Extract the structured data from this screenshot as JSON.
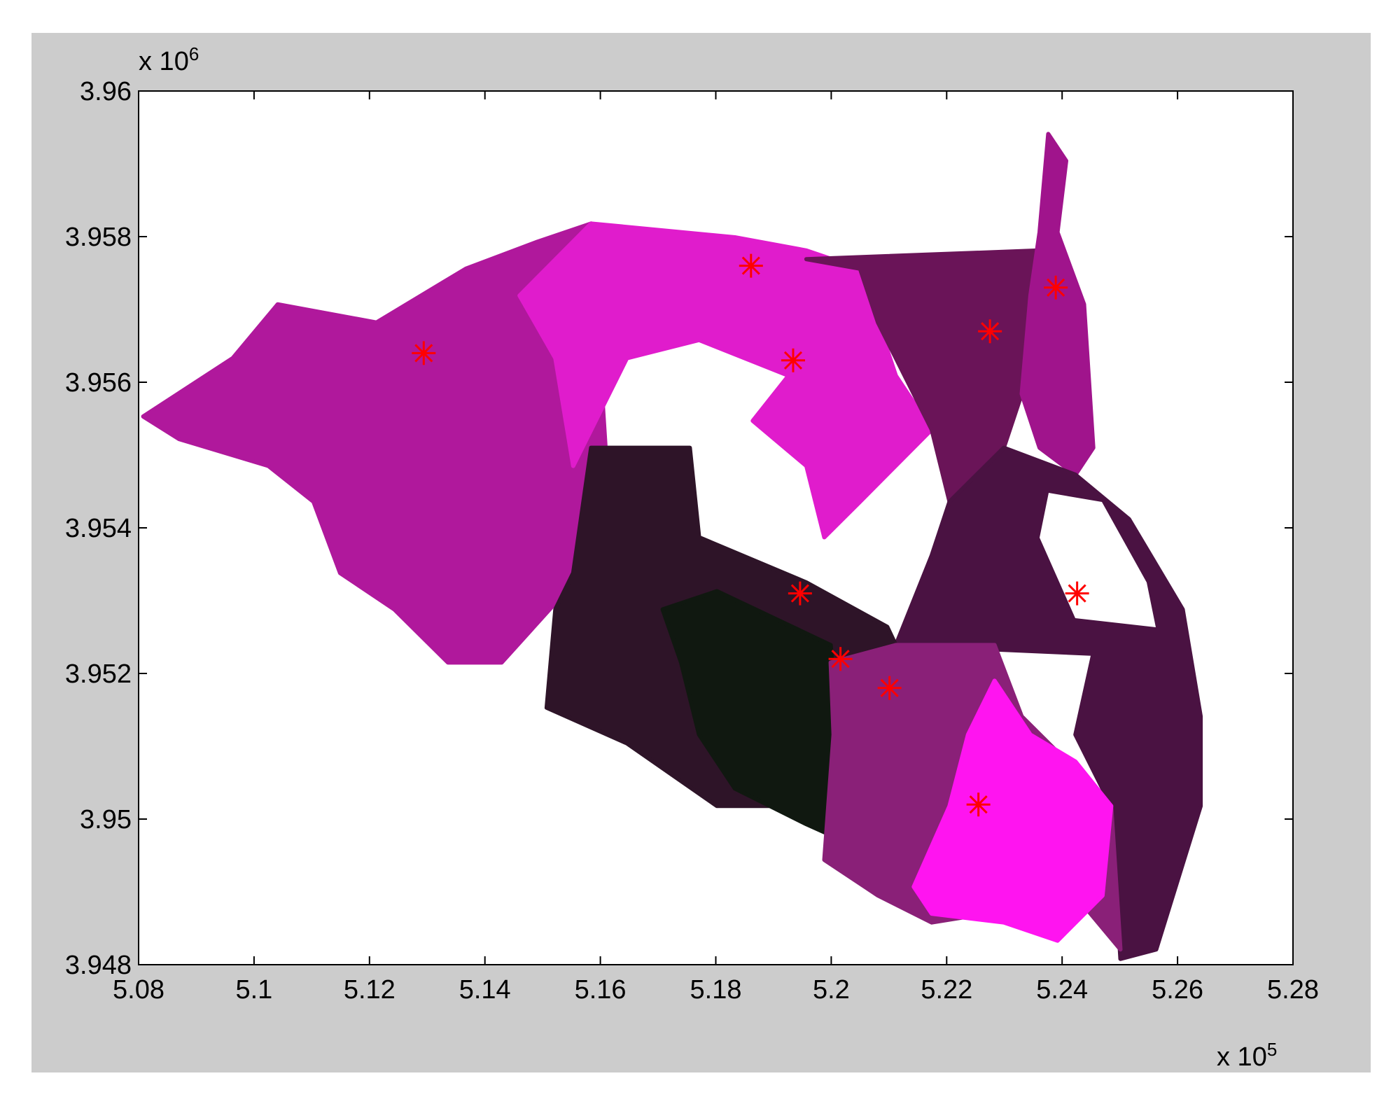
{
  "chart_data": {
    "type": "scatter",
    "xlim": [
      5.08,
      5.28
    ],
    "ylim": [
      3.948,
      3.96
    ],
    "xticks": [
      5.08,
      5.1,
      5.12,
      5.14,
      5.16,
      5.18,
      5.2,
      5.22,
      5.24,
      5.26,
      5.28
    ],
    "yticks": [
      3.948,
      3.95,
      3.952,
      3.954,
      3.956,
      3.958,
      3.96
    ],
    "x_multiplier": {
      "base": "x 10",
      "exponent": "5"
    },
    "y_multiplier": {
      "base": "x 10",
      "exponent": "6"
    },
    "grid": false,
    "regions": [
      {
        "color": "#b0189c",
        "x": [
          5.0808,
          5.0963,
          5.1041,
          5.1212,
          5.1367,
          5.1491,
          5.1584,
          5.1615,
          5.1569,
          5.1429,
          5.1336,
          5.1243,
          5.1149,
          5.1103,
          5.1025,
          5.087
        ],
        "y": [
          3.95553,
          3.95633,
          3.95707,
          3.95682,
          3.95756,
          3.95793,
          3.95818,
          3.95436,
          3.95338,
          3.95215,
          3.95215,
          3.95288,
          3.95338,
          3.95436,
          3.95485,
          3.95522
        ]
      },
      {
        "color": "#e01ccc",
        "x": [
          5.1584,
          5.1833,
          5.1957,
          5.205,
          5.2112,
          5.2174,
          5.205,
          5.1988,
          5.1957,
          5.1864,
          5.1926,
          5.1771,
          5.1646,
          5.1553,
          5.1522,
          5.146
        ],
        "y": [
          3.95818,
          3.95799,
          3.95781,
          3.95756,
          3.95609,
          3.95535,
          3.95436,
          3.95387,
          3.95485,
          3.95547,
          3.95609,
          3.95658,
          3.95633,
          3.95485,
          3.95633,
          3.95719
        ]
      },
      {
        "color": "#6a1458",
        "x": [
          5.1957,
          5.2361,
          5.233,
          5.2299,
          5.2205,
          5.2174,
          5.2081,
          5.205
        ],
        "y": [
          3.95769,
          3.95781,
          3.95584,
          3.9551,
          3.95436,
          3.95535,
          3.95682,
          3.95756
        ]
      },
      {
        "color": "#a0148c",
        "x": [
          5.2376,
          5.2407,
          5.2392,
          5.2438,
          5.2454,
          5.2423,
          5.2361,
          5.233,
          5.2345,
          5.2361
        ],
        "y": [
          3.95941,
          3.95904,
          3.95806,
          3.95707,
          3.9551,
          3.95473,
          3.9551,
          3.95584,
          3.95719,
          3.95806
        ]
      },
      {
        "color": "#4a1242",
        "x": [
          5.2205,
          5.2299,
          5.2423,
          5.2516,
          5.2609,
          5.264,
          5.264,
          5.2563,
          5.2501,
          5.2485,
          5.2423,
          5.2454,
          5.2112,
          5.2174
        ],
        "y": [
          3.95436,
          3.9551,
          3.95473,
          3.95412,
          3.95288,
          3.95141,
          3.95018,
          3.94821,
          3.94808,
          3.95018,
          3.95116,
          3.95227,
          3.95239,
          3.95362
        ]
      },
      {
        "color": "#2e1428",
        "x": [
          5.1584,
          5.1755,
          5.1771,
          5.1957,
          5.2097,
          5.2112,
          5.1988,
          5.1926,
          5.1802,
          5.1646,
          5.1507,
          5.1522,
          5.1553
        ],
        "y": [
          3.9551,
          3.9551,
          3.95387,
          3.95325,
          3.95264,
          3.95239,
          3.95215,
          3.95018,
          3.95018,
          3.95104,
          3.95153,
          3.95288,
          3.95338
        ]
      },
      {
        "color": "#101810",
        "x": [
          5.1708,
          5.1802,
          5.1999,
          5.2027,
          5.1957,
          5.1833,
          5.1771,
          5.174
        ],
        "y": [
          3.95288,
          3.95313,
          3.95239,
          3.94968,
          3.94993,
          3.95042,
          3.95116,
          3.95215
        ]
      },
      {
        "color": "#8a2078",
        "x": [
          5.1999,
          5.2112,
          5.2283,
          5.233,
          5.2392,
          5.2485,
          5.2501,
          5.2423,
          5.2268,
          5.2174,
          5.2081,
          5.1988,
          5.2004
        ],
        "y": [
          3.95215,
          3.95239,
          3.95239,
          3.95141,
          3.95092,
          3.95018,
          3.94821,
          3.94895,
          3.9487,
          3.94858,
          3.94895,
          3.94944,
          3.95116
        ]
      },
      {
        "color": "#ff14f0",
        "x": [
          5.2283,
          5.2345,
          5.2423,
          5.2485,
          5.247,
          5.2392,
          5.2299,
          5.2174,
          5.2143,
          5.2205,
          5.2237
        ],
        "y": [
          3.9519,
          3.95116,
          3.95079,
          3.95018,
          3.94895,
          3.94833,
          3.94858,
          3.9487,
          3.94907,
          3.95018,
          3.95116
        ]
      }
    ],
    "centroids": {
      "color": "#ff0000",
      "x": [
        5.1294,
        5.1861,
        5.1934,
        5.2275,
        5.2389,
        5.1946,
        5.2426,
        5.2016,
        5.2101,
        5.2255
      ],
      "y": [
        3.9564,
        3.9576,
        3.9563,
        3.9567,
        3.9573,
        3.9531,
        3.9531,
        3.9522,
        3.9518,
        3.9502
      ]
    }
  }
}
